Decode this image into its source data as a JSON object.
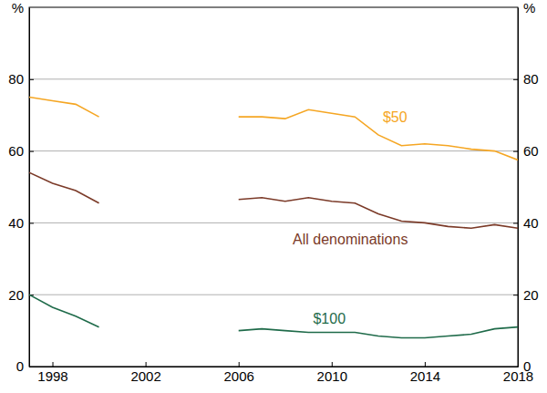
{
  "chart_data": {
    "type": "line",
    "ylabel": "%",
    "x": [
      1997,
      1998,
      1999,
      2000,
      2001,
      2002,
      2003,
      2004,
      2005,
      2006,
      2007,
      2008,
      2009,
      2010,
      2011,
      2012,
      2013,
      2014,
      2015,
      2016,
      2017,
      2018
    ],
    "series": [
      {
        "name": "$50",
        "color": "#f5a623",
        "values": [
          75,
          74,
          73,
          69.5,
          null,
          null,
          null,
          null,
          null,
          69.5,
          69.5,
          69,
          71.5,
          70.5,
          69.5,
          64.5,
          61.5,
          62,
          61.5,
          60.5,
          60,
          57.5
        ]
      },
      {
        "name": "All denominations",
        "color": "#7b3a28",
        "values": [
          54,
          51,
          49,
          45.5,
          null,
          null,
          null,
          null,
          null,
          46.5,
          47,
          46,
          47,
          46,
          45.5,
          42.5,
          40.5,
          40,
          39,
          38.5,
          39.5,
          38.5
        ]
      },
      {
        "name": "$100",
        "color": "#1f6b4a",
        "values": [
          20,
          16.5,
          14,
          11,
          null,
          null,
          null,
          null,
          null,
          10,
          10.5,
          10,
          9.5,
          9.5,
          9.5,
          8.5,
          8,
          8,
          8.5,
          9,
          10.5,
          11
        ]
      }
    ],
    "xlim": [
      1997,
      2018
    ],
    "xticks": [
      1998,
      2002,
      2006,
      2010,
      2014,
      2018
    ],
    "ylim": [
      0,
      100
    ],
    "yticks": [
      0,
      20,
      40,
      60,
      80
    ],
    "grid": true
  }
}
